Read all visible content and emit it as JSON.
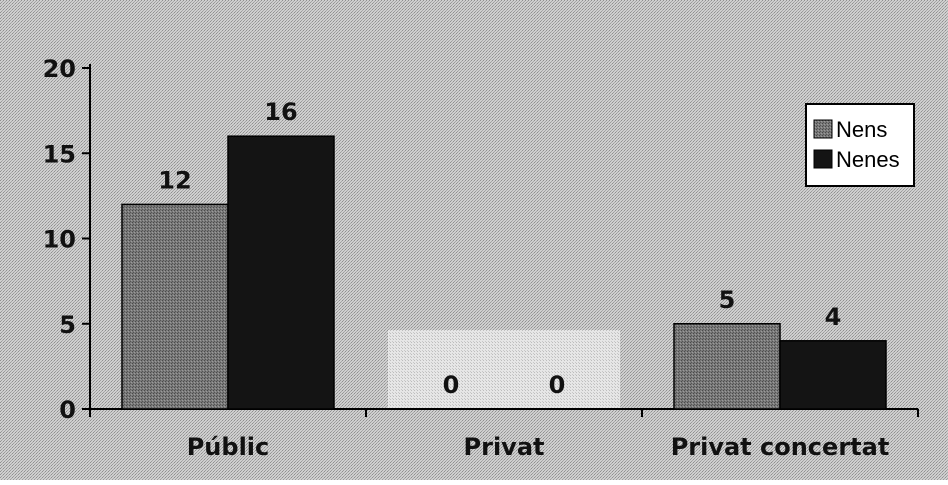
{
  "chart_data": {
    "type": "bar",
    "categories": [
      "Públic",
      "Privat",
      "Privat concertat"
    ],
    "series": [
      {
        "name": "Nens",
        "values": [
          12,
          0,
          5
        ],
        "color": "#6e6e6e"
      },
      {
        "name": "Nenes",
        "values": [
          16,
          0,
          4
        ],
        "color": "#141414"
      }
    ],
    "ylim": [
      0,
      20
    ],
    "yticks": [
      0,
      5,
      10,
      15,
      20
    ],
    "data_labels": true,
    "legend_position": "top-right",
    "grid": false,
    "background_color": "#c8c8c8",
    "highlight_color": "#d9d9d9"
  }
}
